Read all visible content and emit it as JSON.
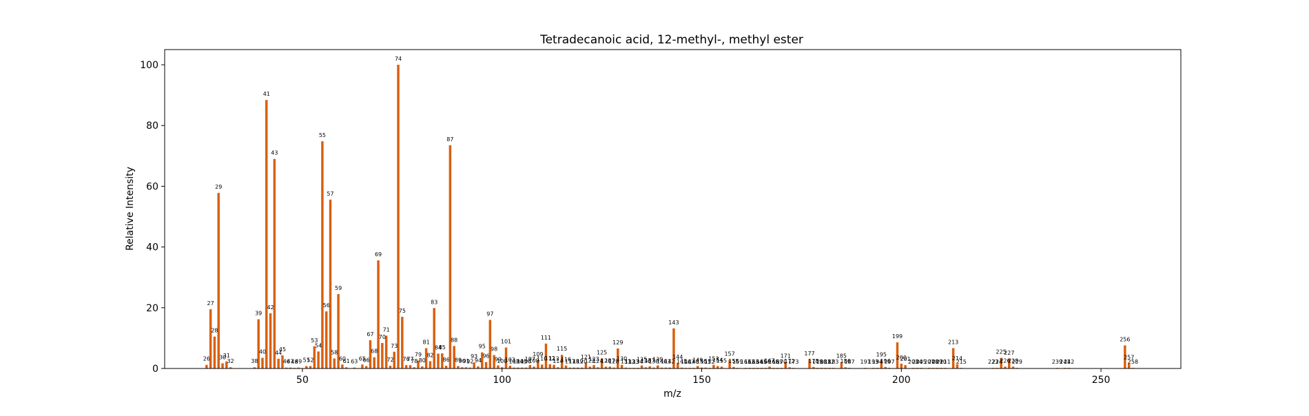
{
  "chart_data": {
    "type": "bar",
    "title": "Tetradecanoic acid, 12-methyl-, methyl ester",
    "xlabel": "m/z",
    "ylabel": "Relative Intensity",
    "xlim": [
      15.5,
      270
    ],
    "ylim": [
      0,
      105
    ],
    "xticks": [
      50,
      100,
      150,
      200,
      250
    ],
    "yticks": [
      0,
      20,
      40,
      60,
      80,
      100
    ],
    "grid": false,
    "bar_color": "#d95f0e",
    "peaks": [
      {
        "mz": 26,
        "intensity": 1.2
      },
      {
        "mz": 27,
        "intensity": 19.5
      },
      {
        "mz": 28,
        "intensity": 10.5
      },
      {
        "mz": 29,
        "intensity": 57.8
      },
      {
        "mz": 30,
        "intensity": 1.7
      },
      {
        "mz": 31,
        "intensity": 2.3
      },
      {
        "mz": 32,
        "intensity": 0.4
      },
      {
        "mz": 38,
        "intensity": 0.4
      },
      {
        "mz": 39,
        "intensity": 16.2
      },
      {
        "mz": 40,
        "intensity": 3.5
      },
      {
        "mz": 41,
        "intensity": 88.4
      },
      {
        "mz": 42,
        "intensity": 18.2
      },
      {
        "mz": 43,
        "intensity": 69.0
      },
      {
        "mz": 44,
        "intensity": 3.2
      },
      {
        "mz": 45,
        "intensity": 4.3
      },
      {
        "mz": 46,
        "intensity": 0.3
      },
      {
        "mz": 47,
        "intensity": 0.3
      },
      {
        "mz": 48,
        "intensity": 0.2
      },
      {
        "mz": 49,
        "intensity": 0.3
      },
      {
        "mz": 51,
        "intensity": 0.8
      },
      {
        "mz": 52,
        "intensity": 0.8
      },
      {
        "mz": 53,
        "intensity": 7.3
      },
      {
        "mz": 54,
        "intensity": 5.6
      },
      {
        "mz": 55,
        "intensity": 74.8
      },
      {
        "mz": 56,
        "intensity": 18.8
      },
      {
        "mz": 57,
        "intensity": 55.6
      },
      {
        "mz": 58,
        "intensity": 3.3
      },
      {
        "mz": 59,
        "intensity": 24.5
      },
      {
        "mz": 60,
        "intensity": 1.3
      },
      {
        "mz": 61,
        "intensity": 0.4
      },
      {
        "mz": 63,
        "intensity": 0.3
      },
      {
        "mz": 65,
        "intensity": 1.3
      },
      {
        "mz": 66,
        "intensity": 0.8
      },
      {
        "mz": 67,
        "intensity": 9.3
      },
      {
        "mz": 68,
        "intensity": 3.7
      },
      {
        "mz": 69,
        "intensity": 35.6
      },
      {
        "mz": 70,
        "intensity": 8.4
      },
      {
        "mz": 71,
        "intensity": 10.8
      },
      {
        "mz": 72,
        "intensity": 0.9
      },
      {
        "mz": 73,
        "intensity": 5.5
      },
      {
        "mz": 74,
        "intensity": 100.0
      },
      {
        "mz": 75,
        "intensity": 17.0
      },
      {
        "mz": 76,
        "intensity": 1.1
      },
      {
        "mz": 77,
        "intensity": 1.1
      },
      {
        "mz": 78,
        "intensity": 0.4
      },
      {
        "mz": 79,
        "intensity": 2.6
      },
      {
        "mz": 80,
        "intensity": 0.7
      },
      {
        "mz": 81,
        "intensity": 6.7
      },
      {
        "mz": 82,
        "intensity": 2.4
      },
      {
        "mz": 83,
        "intensity": 19.9
      },
      {
        "mz": 84,
        "intensity": 4.9
      },
      {
        "mz": 85,
        "intensity": 5.0
      },
      {
        "mz": 86,
        "intensity": 0.9
      },
      {
        "mz": 87,
        "intensity": 73.5
      },
      {
        "mz": 88,
        "intensity": 7.4
      },
      {
        "mz": 89,
        "intensity": 0.8
      },
      {
        "mz": 90,
        "intensity": 0.4
      },
      {
        "mz": 91,
        "intensity": 0.4
      },
      {
        "mz": 92,
        "intensity": 0.3
      },
      {
        "mz": 93,
        "intensity": 2.0
      },
      {
        "mz": 94,
        "intensity": 0.7
      },
      {
        "mz": 95,
        "intensity": 5.3
      },
      {
        "mz": 96,
        "intensity": 2.1
      },
      {
        "mz": 97,
        "intensity": 16.0
      },
      {
        "mz": 98,
        "intensity": 4.4
      },
      {
        "mz": 99,
        "intensity": 1.0
      },
      {
        "mz": 100,
        "intensity": 0.4
      },
      {
        "mz": 101,
        "intensity": 6.9
      },
      {
        "mz": 102,
        "intensity": 0.9
      },
      {
        "mz": 103,
        "intensity": 0.3
      },
      {
        "mz": 104,
        "intensity": 0.3
      },
      {
        "mz": 105,
        "intensity": 0.3
      },
      {
        "mz": 106,
        "intensity": 0.3
      },
      {
        "mz": 107,
        "intensity": 1.1
      },
      {
        "mz": 108,
        "intensity": 0.6
      },
      {
        "mz": 109,
        "intensity": 2.7
      },
      {
        "mz": 110,
        "intensity": 1.3
      },
      {
        "mz": 111,
        "intensity": 8.2
      },
      {
        "mz": 112,
        "intensity": 1.4
      },
      {
        "mz": 113,
        "intensity": 1.2
      },
      {
        "mz": 114,
        "intensity": 0.4
      },
      {
        "mz": 115,
        "intensity": 4.5
      },
      {
        "mz": 116,
        "intensity": 1.0
      },
      {
        "mz": 117,
        "intensity": 0.3
      },
      {
        "mz": 118,
        "intensity": 0.3
      },
      {
        "mz": 119,
        "intensity": 0.3
      },
      {
        "mz": 120,
        "intensity": 0.3
      },
      {
        "mz": 121,
        "intensity": 1.8
      },
      {
        "mz": 122,
        "intensity": 0.6
      },
      {
        "mz": 123,
        "intensity": 1.1
      },
      {
        "mz": 124,
        "intensity": 0.4
      },
      {
        "mz": 125,
        "intensity": 3.3
      },
      {
        "mz": 126,
        "intensity": 0.6
      },
      {
        "mz": 127,
        "intensity": 0.6
      },
      {
        "mz": 128,
        "intensity": 0.3
      },
      {
        "mz": 129,
        "intensity": 6.6
      },
      {
        "mz": 130,
        "intensity": 1.2
      },
      {
        "mz": 131,
        "intensity": 0.3
      },
      {
        "mz": 132,
        "intensity": 0.2
      },
      {
        "mz": 133,
        "intensity": 0.2
      },
      {
        "mz": 134,
        "intensity": 0.2
      },
      {
        "mz": 135,
        "intensity": 1.0
      },
      {
        "mz": 136,
        "intensity": 0.4
      },
      {
        "mz": 137,
        "intensity": 0.7
      },
      {
        "mz": 138,
        "intensity": 0.3
      },
      {
        "mz": 139,
        "intensity": 1.0
      },
      {
        "mz": 140,
        "intensity": 0.3
      },
      {
        "mz": 141,
        "intensity": 0.3
      },
      {
        "mz": 142,
        "intensity": 0.3
      },
      {
        "mz": 143,
        "intensity": 13.2
      },
      {
        "mz": 144,
        "intensity": 1.8
      },
      {
        "mz": 145,
        "intensity": 0.3
      },
      {
        "mz": 146,
        "intensity": 0.2
      },
      {
        "mz": 147,
        "intensity": 0.2
      },
      {
        "mz": 148,
        "intensity": 0.2
      },
      {
        "mz": 149,
        "intensity": 0.8
      },
      {
        "mz": 150,
        "intensity": 0.3
      },
      {
        "mz": 151,
        "intensity": 0.3
      },
      {
        "mz": 152,
        "intensity": 0.2
      },
      {
        "mz": 153,
        "intensity": 1.2
      },
      {
        "mz": 154,
        "intensity": 0.8
      },
      {
        "mz": 155,
        "intensity": 0.6
      },
      {
        "mz": 157,
        "intensity": 2.8
      },
      {
        "mz": 158,
        "intensity": 0.5
      },
      {
        "mz": 159,
        "intensity": 0.2
      },
      {
        "mz": 161,
        "intensity": 0.2
      },
      {
        "mz": 162,
        "intensity": 0.2
      },
      {
        "mz": 163,
        "intensity": 0.2
      },
      {
        "mz": 164,
        "intensity": 0.2
      },
      {
        "mz": 165,
        "intensity": 0.2
      },
      {
        "mz": 166,
        "intensity": 0.2
      },
      {
        "mz": 167,
        "intensity": 0.6
      },
      {
        "mz": 168,
        "intensity": 0.2
      },
      {
        "mz": 169,
        "intensity": 0.2
      },
      {
        "mz": 170,
        "intensity": 0.2
      },
      {
        "mz": 171,
        "intensity": 2.2
      },
      {
        "mz": 172,
        "intensity": 0.4
      },
      {
        "mz": 173,
        "intensity": 0.2
      },
      {
        "mz": 177,
        "intensity": 3.0
      },
      {
        "mz": 178,
        "intensity": 0.5
      },
      {
        "mz": 179,
        "intensity": 0.2
      },
      {
        "mz": 180,
        "intensity": 0.2
      },
      {
        "mz": 181,
        "intensity": 0.2
      },
      {
        "mz": 182,
        "intensity": 0.2
      },
      {
        "mz": 183,
        "intensity": 0.2
      },
      {
        "mz": 185,
        "intensity": 2.1
      },
      {
        "mz": 186,
        "intensity": 0.4
      },
      {
        "mz": 187,
        "intensity": 0.2
      },
      {
        "mz": 191,
        "intensity": 0.2
      },
      {
        "mz": 193,
        "intensity": 0.2
      },
      {
        "mz": 194,
        "intensity": 0.2
      },
      {
        "mz": 195,
        "intensity": 2.6
      },
      {
        "mz": 196,
        "intensity": 0.5
      },
      {
        "mz": 197,
        "intensity": 0.2
      },
      {
        "mz": 199,
        "intensity": 8.6
      },
      {
        "mz": 200,
        "intensity": 1.6
      },
      {
        "mz": 201,
        "intensity": 1.1
      },
      {
        "mz": 203,
        "intensity": 0.2
      },
      {
        "mz": 204,
        "intensity": 0.2
      },
      {
        "mz": 205,
        "intensity": 0.2
      },
      {
        "mz": 207,
        "intensity": 0.2
      },
      {
        "mz": 208,
        "intensity": 0.2
      },
      {
        "mz": 209,
        "intensity": 0.2
      },
      {
        "mz": 210,
        "intensity": 0.2
      },
      {
        "mz": 211,
        "intensity": 0.2
      },
      {
        "mz": 213,
        "intensity": 6.7
      },
      {
        "mz": 214,
        "intensity": 1.4
      },
      {
        "mz": 215,
        "intensity": 0.2
      },
      {
        "mz": 223,
        "intensity": 0.2
      },
      {
        "mz": 224,
        "intensity": 0.2
      },
      {
        "mz": 225,
        "intensity": 3.5
      },
      {
        "mz": 226,
        "intensity": 0.6
      },
      {
        "mz": 227,
        "intensity": 3.2
      },
      {
        "mz": 228,
        "intensity": 0.6
      },
      {
        "mz": 229,
        "intensity": 0.2
      },
      {
        "mz": 239,
        "intensity": 0.2
      },
      {
        "mz": 241,
        "intensity": 0.2
      },
      {
        "mz": 242,
        "intensity": 0.2
      },
      {
        "mz": 256,
        "intensity": 7.6
      },
      {
        "mz": 257,
        "intensity": 1.7
      },
      {
        "mz": 258,
        "intensity": 0.2
      }
    ]
  }
}
